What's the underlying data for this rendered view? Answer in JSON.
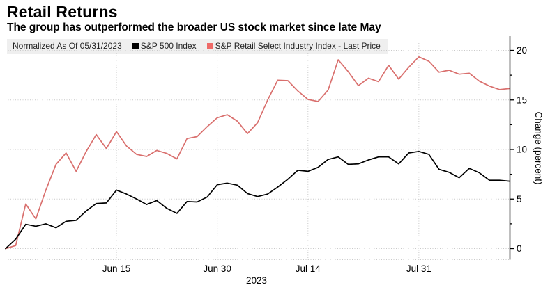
{
  "header": {
    "title": "Retail Returns",
    "subtitle": "The group has outperformed the broader US stock market since late May"
  },
  "legend": {
    "normalized_label": "Normalized As Of 05/31/2023",
    "items": [
      {
        "label": "S&P 500 Index",
        "color": "#000000"
      },
      {
        "label": "S&P Retail Select Industry Index - Last Price",
        "color": "#ee6a68"
      }
    ]
  },
  "y_axis": {
    "label": "Change (percent)",
    "ticks": [
      0,
      5,
      10,
      15,
      20
    ],
    "minor_ticks": [
      2.5,
      7.5,
      12.5,
      17.5
    ]
  },
  "x_axis": {
    "year_label": "2023",
    "ticks": [
      {
        "label": "Jun 15",
        "index": 11
      },
      {
        "label": "Jun 30",
        "index": 21
      },
      {
        "label": "Jul 14",
        "index": 30
      },
      {
        "label": "Jul 31",
        "index": 41
      }
    ]
  },
  "chart_data": {
    "type": "line",
    "title": "Retail Returns",
    "subtitle": "The group has outperformed the broader US stock market since late May",
    "xlabel": "2023",
    "ylabel": "Change (percent)",
    "ylim": [
      0,
      20
    ],
    "grid": "dotted",
    "legend_position": "top",
    "axis_side": "right",
    "x": [
      "05/31",
      "06/01",
      "06/02",
      "06/05",
      "06/06",
      "06/07",
      "06/08",
      "06/09",
      "06/12",
      "06/13",
      "06/14",
      "06/15",
      "06/16",
      "06/20",
      "06/21",
      "06/22",
      "06/23",
      "06/26",
      "06/27",
      "06/28",
      "06/29",
      "06/30",
      "07/03",
      "07/05",
      "07/06",
      "07/07",
      "07/10",
      "07/11",
      "07/12",
      "07/13",
      "07/14",
      "07/17",
      "07/18",
      "07/19",
      "07/20",
      "07/21",
      "07/24",
      "07/25",
      "07/26",
      "07/27",
      "07/28",
      "07/31",
      "08/01",
      "08/02",
      "08/03",
      "08/04",
      "08/07",
      "08/08",
      "08/09",
      "08/10",
      "08/11"
    ],
    "series": [
      {
        "name": "S&P 500 Index",
        "color": "#000000",
        "values": [
          0.0,
          0.95,
          2.45,
          2.25,
          2.5,
          2.1,
          2.75,
          2.85,
          3.8,
          4.55,
          4.6,
          5.9,
          5.5,
          5.0,
          4.45,
          4.85,
          4.05,
          3.55,
          4.75,
          4.7,
          5.2,
          6.45,
          6.6,
          6.4,
          5.55,
          5.25,
          5.5,
          6.2,
          7.0,
          7.9,
          7.8,
          8.2,
          9.0,
          9.25,
          8.5,
          8.55,
          8.95,
          9.25,
          9.25,
          8.55,
          9.65,
          9.8,
          9.5,
          8.0,
          7.7,
          7.15,
          8.1,
          7.65,
          6.9,
          6.9,
          6.8
        ]
      },
      {
        "name": "S&P Retail Select Industry Index - Last Price",
        "color": "#d96f6d",
        "values": [
          0.0,
          0.3,
          4.5,
          3.0,
          5.9,
          8.5,
          9.65,
          7.8,
          9.8,
          11.5,
          10.1,
          11.8,
          10.35,
          9.5,
          9.3,
          9.9,
          9.6,
          9.05,
          11.1,
          11.3,
          12.3,
          13.2,
          13.5,
          12.85,
          11.6,
          12.7,
          15.0,
          17.0,
          16.95,
          15.9,
          15.05,
          14.85,
          16.0,
          19.05,
          17.85,
          16.45,
          17.2,
          16.85,
          18.5,
          17.1,
          18.3,
          19.35,
          18.9,
          17.8,
          18.0,
          17.6,
          17.7,
          16.9,
          16.4,
          16.05,
          16.15
        ]
      }
    ]
  }
}
